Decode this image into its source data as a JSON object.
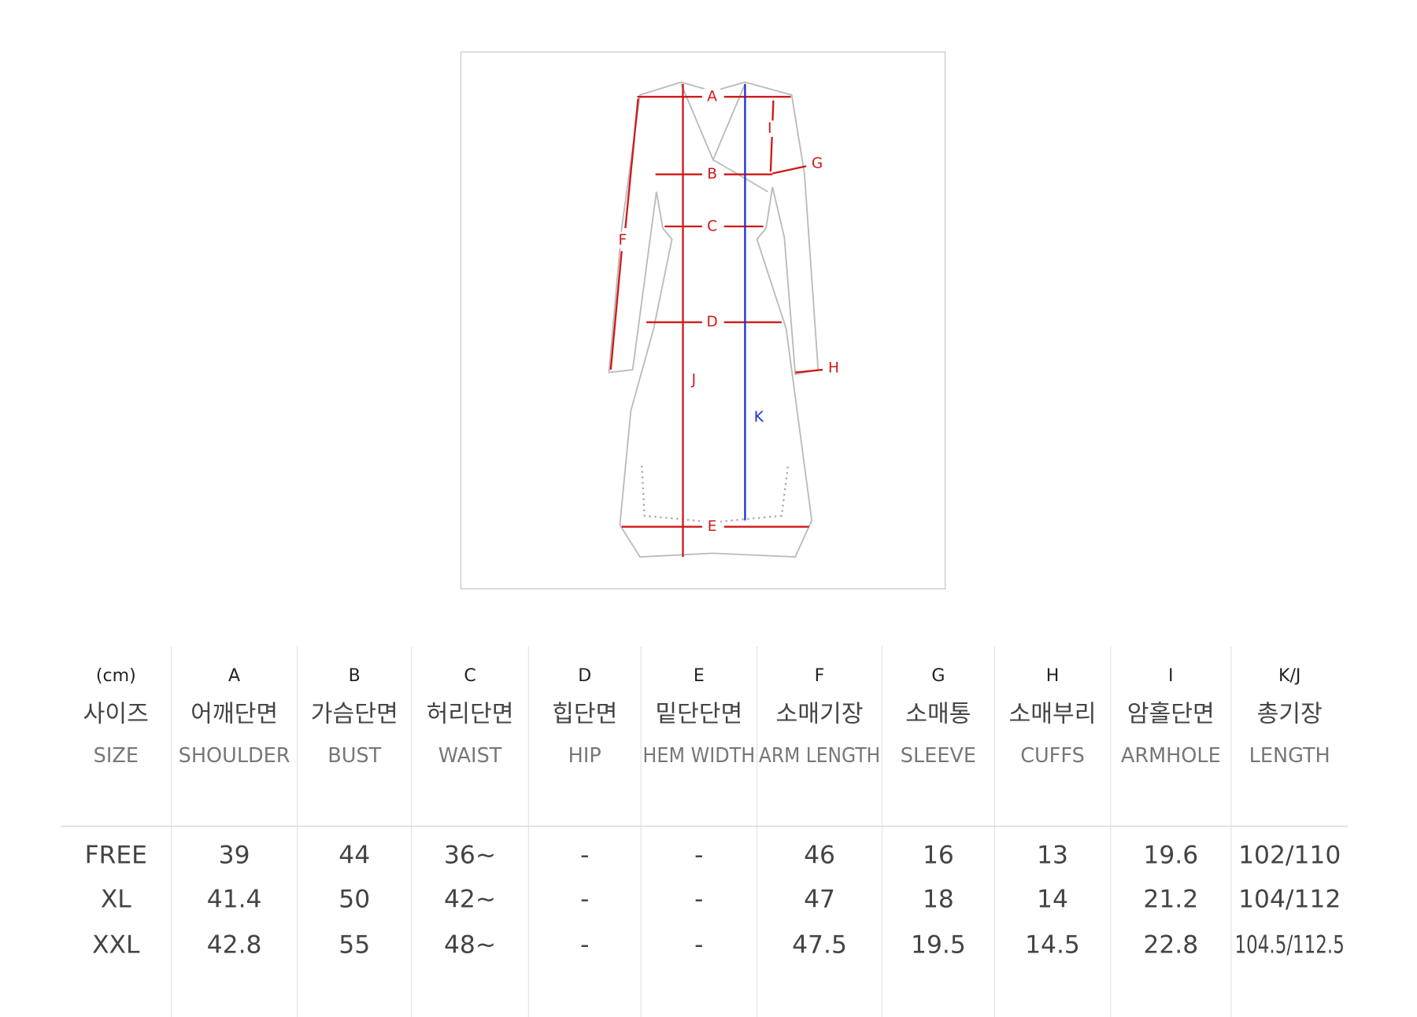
{
  "diagram": {
    "labels": [
      "A",
      "B",
      "C",
      "D",
      "E",
      "F",
      "G",
      "H",
      "I",
      "J",
      "K"
    ]
  },
  "table": {
    "header_letters": [
      "(cm)",
      "A",
      "B",
      "C",
      "D",
      "E",
      "F",
      "G",
      "H",
      "I",
      "K/J"
    ],
    "header_korean": [
      "사이즈",
      "어깨단면",
      "가슴단면",
      "허리단면",
      "힙단면",
      "밑단단면",
      "소매기장",
      "소매통",
      "소매부리",
      "암홀단면",
      "총기장"
    ],
    "header_english": [
      "SIZE",
      "SHOULDER",
      "BUST",
      "WAIST",
      "HIP",
      "HEM WIDTH",
      "ARM LENGTH",
      "SLEEVE",
      "CUFFS",
      "ARMHOLE",
      "LENGTH"
    ],
    "rows": [
      [
        "FREE",
        "39",
        "44",
        "36~",
        "-",
        "-",
        "46",
        "16",
        "13",
        "19.6",
        "102/110"
      ],
      [
        "XL",
        "41.4",
        "50",
        "42~",
        "-",
        "-",
        "47",
        "18",
        "14",
        "21.2",
        "104/112"
      ],
      [
        "XXL",
        "42.8",
        "55",
        "48~",
        "-",
        "-",
        "47.5",
        "19.5",
        "14.5",
        "22.8",
        "104.5/112.5"
      ]
    ]
  }
}
